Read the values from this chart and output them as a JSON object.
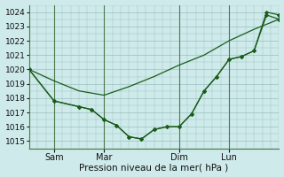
{
  "xlabel": "Pression niveau de la mer( hPa )",
  "background_color": "#ceeaea",
  "grid_color": "#9bbfbf",
  "line_color": "#1a5c1a",
  "marker_color": "#1a5c1a",
  "ylim": [
    1014.5,
    1024.5
  ],
  "yticks": [
    1015,
    1016,
    1017,
    1018,
    1019,
    1020,
    1021,
    1022,
    1023,
    1024
  ],
  "x_tick_labels": [
    "Sam",
    "Mar",
    "Dim",
    "Lun"
  ],
  "x_tick_positions": [
    24,
    72,
    144,
    192
  ],
  "xlim": [
    0,
    240
  ],
  "vline_positions": [
    24,
    72,
    144,
    192
  ],
  "series_smooth_x": [
    0,
    24,
    48,
    72,
    96,
    120,
    144,
    168,
    192,
    216,
    240
  ],
  "series_smooth_y": [
    1020.0,
    1019.2,
    1018.5,
    1018.2,
    1018.8,
    1019.5,
    1020.3,
    1021.0,
    1022.0,
    1022.8,
    1023.5
  ],
  "series_a_x": [
    0,
    24,
    48,
    60,
    72,
    84,
    96,
    108,
    120,
    132,
    144,
    156,
    168,
    180,
    192,
    204,
    216,
    228,
    240
  ],
  "series_a_y": [
    1020.0,
    1017.8,
    1017.4,
    1017.2,
    1016.5,
    1016.1,
    1015.3,
    1015.15,
    1015.8,
    1016.0,
    1016.0,
    1016.9,
    1018.5,
    1019.5,
    1020.7,
    1020.9,
    1021.3,
    1023.8,
    1023.5
  ],
  "series_b_x": [
    0,
    24,
    48,
    60,
    72,
    84,
    96,
    108,
    120,
    132,
    144,
    156,
    168,
    180,
    192,
    204,
    216,
    228,
    240
  ],
  "series_b_y": [
    1020.0,
    1017.8,
    1017.4,
    1017.2,
    1016.5,
    1016.1,
    1015.3,
    1015.15,
    1015.8,
    1016.0,
    1016.0,
    1016.9,
    1018.5,
    1019.5,
    1020.7,
    1020.9,
    1021.3,
    1024.0,
    1023.8
  ]
}
